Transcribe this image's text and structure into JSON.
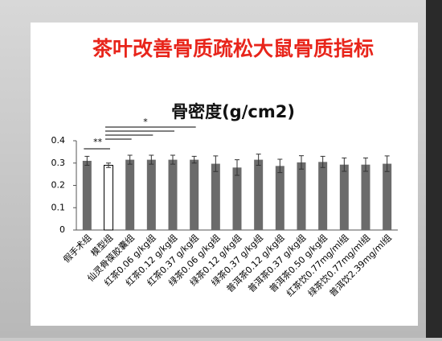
{
  "chart_data": {
    "type": "bar",
    "title": "茶叶改善骨质疏松大鼠骨质指标",
    "subtitle": "骨密度(g/cm2)",
    "categories": [
      "假手术组",
      "模型组",
      "仙灵骨葆胶囊组",
      "红茶0.06 g/kg组",
      "红茶0.12 g/kg组",
      "红茶0.37 g/kg组",
      "绿茶0.06 g/kg组",
      "绿茶0.12 g/kg组",
      "绿茶0.37 g/kg组",
      "普洱茶0.12 g/kg组",
      "普洱茶0.37 g/kg组",
      "普洱茶0.50 g/kg组",
      "红茶饮0.77mg/ml组",
      "绿茶饮0.77mg/ml组",
      "普洱饮2.39mg/ml组"
    ],
    "series": [
      {
        "values": [
          0.31,
          0.29,
          0.315,
          0.315,
          0.315,
          0.315,
          0.297,
          0.28,
          0.315,
          0.287,
          0.303,
          0.305,
          0.293,
          0.293,
          0.297
        ],
        "errors": [
          0.02,
          0.01,
          0.02,
          0.02,
          0.02,
          0.015,
          0.035,
          0.035,
          0.025,
          0.03,
          0.03,
          0.025,
          0.03,
          0.03,
          0.035
        ],
        "colors": [
          "#6b6b6b",
          "#ffffff",
          "#6b6b6b",
          "#6b6b6b",
          "#6b6b6b",
          "#6b6b6b",
          "#6b6b6b",
          "#6b6b6b",
          "#6b6b6b",
          "#6b6b6b",
          "#6b6b6b",
          "#6b6b6b",
          "#6b6b6b",
          "#6b6b6b",
          "#6b6b6b"
        ]
      }
    ],
    "annotations": [
      "**",
      "*"
    ],
    "ylim": [
      0,
      0.4
    ],
    "yticks": [
      0,
      0.1,
      0.2,
      0.3,
      0.4
    ],
    "title_color": "#e8251b"
  }
}
